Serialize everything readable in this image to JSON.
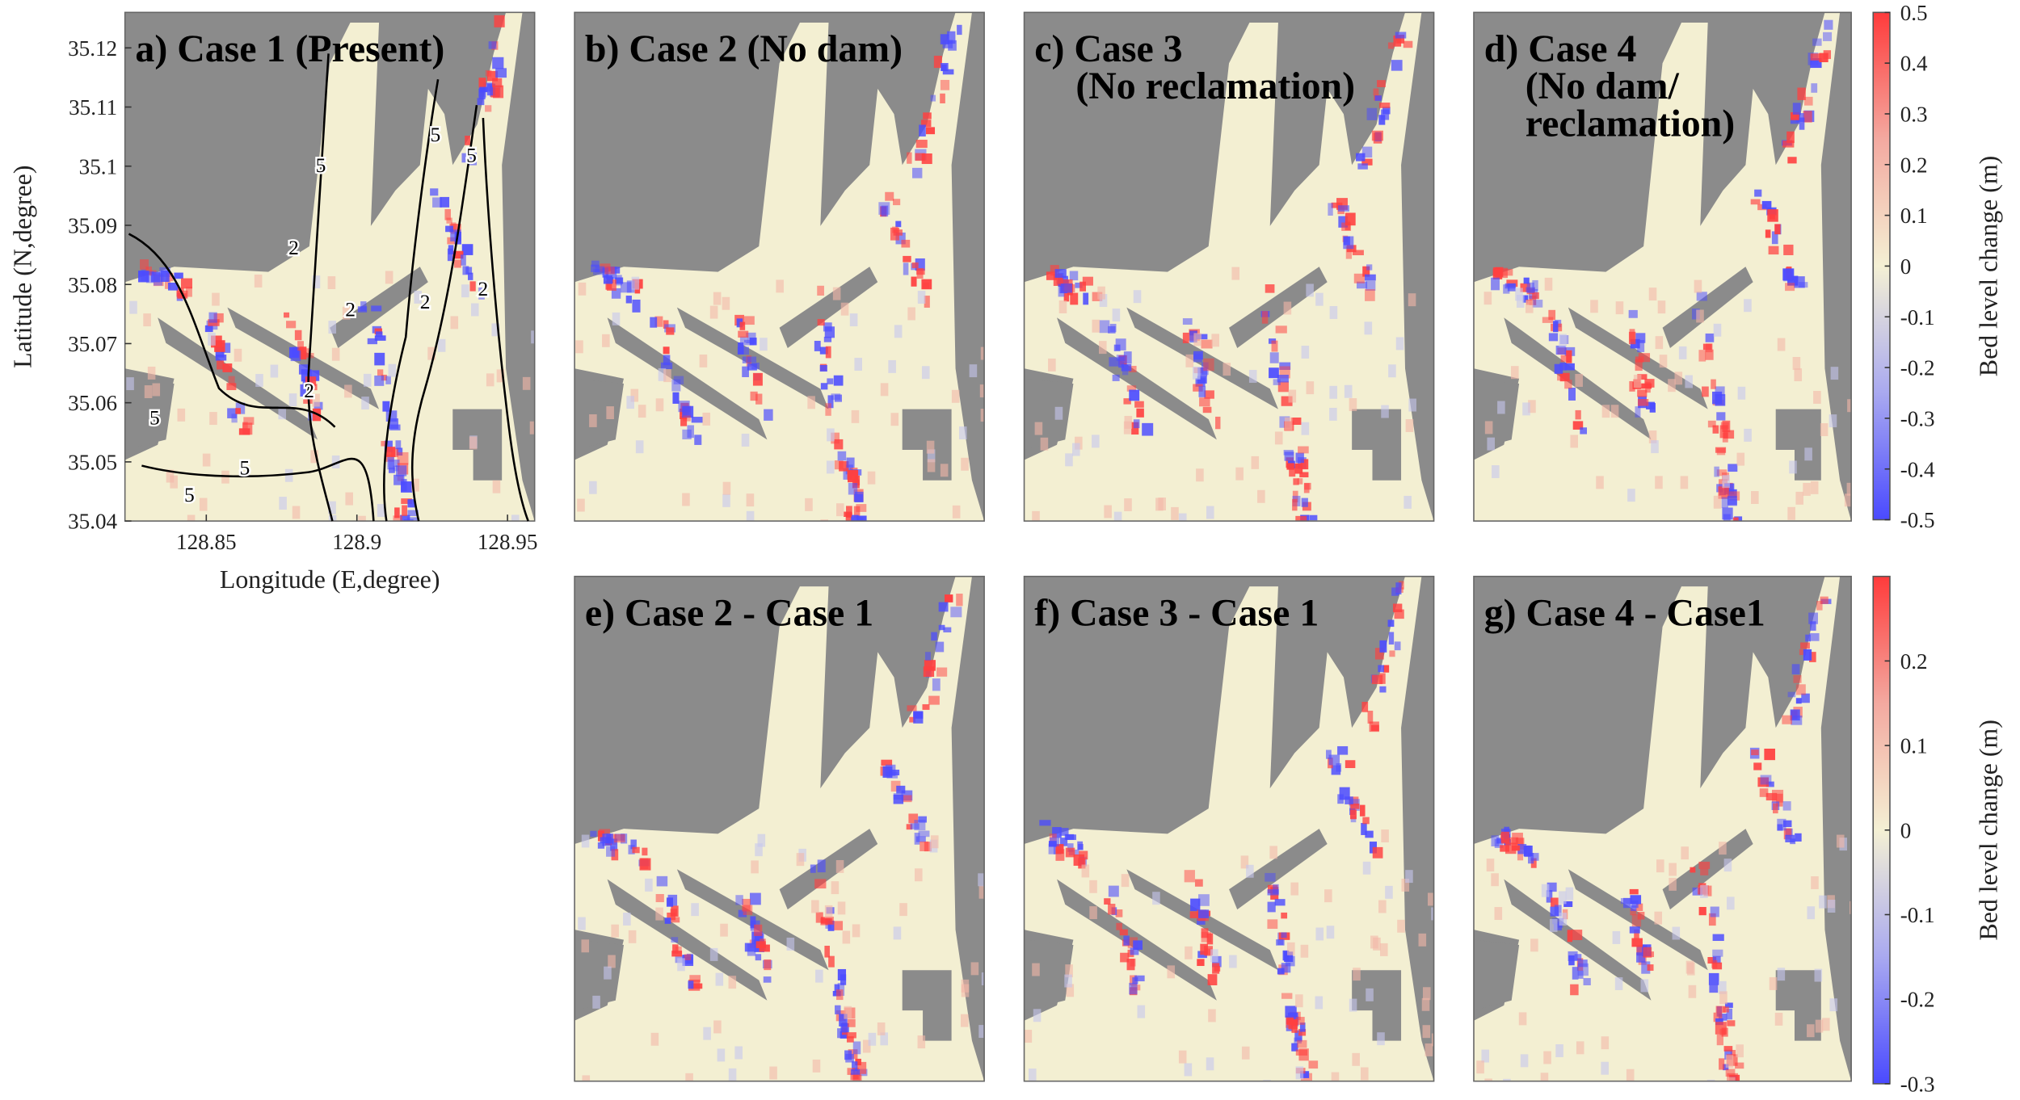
{
  "chart_data": [
    {
      "type": "map",
      "title": [
        "a) Case 1 (Present)"
      ],
      "xlabel": "Longitude (E,degree)",
      "ylabel": "Latitude (N,degree)",
      "xlim": [
        128.823,
        128.959
      ],
      "xticks": [
        128.85,
        128.9,
        128.95
      ],
      "ylim": [
        35.04,
        35.126
      ],
      "yticks": [
        35.04,
        35.05,
        35.06,
        35.07,
        35.08,
        35.09,
        35.1,
        35.11,
        35.12
      ],
      "contour_labels": [
        5,
        5,
        5,
        2,
        2,
        2,
        2,
        5,
        2,
        5,
        5
      ]
    },
    {
      "type": "map",
      "title": [
        "b) Case 2 (No dam)"
      ]
    },
    {
      "type": "map",
      "title": [
        "c) Case 3",
        "(No reclamation)"
      ]
    },
    {
      "type": "map",
      "title": [
        "d) Case 4",
        "(No dam/",
        "reclamation)"
      ],
      "colorbar": {
        "label": "Bed level change (m)",
        "lim": [
          -0.5,
          0.5
        ],
        "ticks": [
          -0.5,
          -0.4,
          -0.3,
          -0.2,
          -0.1,
          0,
          0.1,
          0.2,
          0.3,
          0.4,
          0.5
        ]
      }
    },
    {
      "type": "map",
      "title": [
        "e) Case 2 - Case 1"
      ]
    },
    {
      "type": "map",
      "title": [
        "f) Case 3 - Case 1"
      ]
    },
    {
      "type": "map",
      "title": [
        "g) Case 4 - Case1"
      ],
      "colorbar": {
        "label": "Bed level change (m)",
        "lim": [
          -0.3,
          0.3
        ],
        "ticks": [
          -0.3,
          -0.2,
          -0.1,
          0,
          0.1,
          0.2
        ]
      }
    }
  ]
}
